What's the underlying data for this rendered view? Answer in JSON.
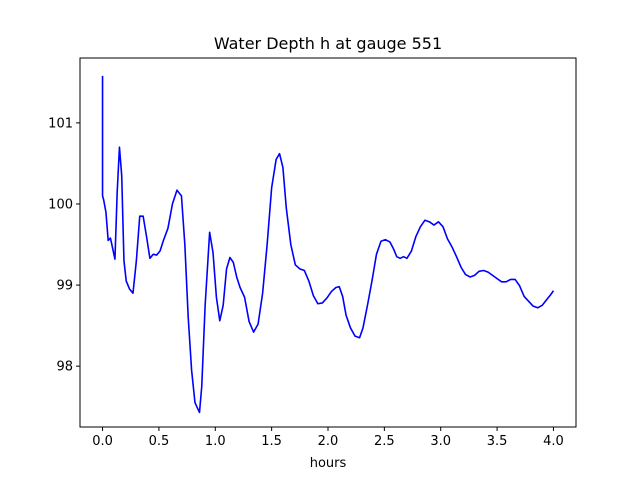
{
  "chart_data": {
    "type": "line",
    "title": "Water Depth h at gauge 551",
    "xlabel": "hours",
    "ylabel": "",
    "xlim": [
      -0.2,
      4.2
    ],
    "ylim": [
      97.25,
      101.8
    ],
    "xticks": [
      0.0,
      0.5,
      1.0,
      1.5,
      2.0,
      2.5,
      3.0,
      3.5,
      4.0
    ],
    "xtick_labels": [
      "0.0",
      "0.5",
      "1.0",
      "1.5",
      "2.0",
      "2.5",
      "3.0",
      "3.5",
      "4.0"
    ],
    "yticks": [
      98,
      99,
      100,
      101
    ],
    "ytick_labels": [
      "98",
      "99",
      "100",
      "101"
    ],
    "grid": false,
    "series": [
      {
        "color": "#0000ff",
        "x": [
          0.0,
          0.0,
          0.01,
          0.03,
          0.05,
          0.07,
          0.09,
          0.11,
          0.13,
          0.15,
          0.17,
          0.19,
          0.21,
          0.24,
          0.27,
          0.3,
          0.33,
          0.36,
          0.39,
          0.42,
          0.45,
          0.48,
          0.51,
          0.54,
          0.58,
          0.62,
          0.66,
          0.7,
          0.73,
          0.76,
          0.79,
          0.82,
          0.86,
          0.88,
          0.91,
          0.95,
          0.98,
          1.01,
          1.04,
          1.07,
          1.1,
          1.13,
          1.16,
          1.19,
          1.22,
          1.26,
          1.3,
          1.34,
          1.38,
          1.42,
          1.46,
          1.5,
          1.54,
          1.57,
          1.6,
          1.63,
          1.67,
          1.71,
          1.75,
          1.79,
          1.83,
          1.87,
          1.91,
          1.95,
          1.99,
          2.03,
          2.07,
          2.1,
          2.13,
          2.16,
          2.2,
          2.24,
          2.28,
          2.31,
          2.35,
          2.39,
          2.43,
          2.47,
          2.51,
          2.55,
          2.58,
          2.61,
          2.64,
          2.67,
          2.7,
          2.74,
          2.78,
          2.82,
          2.86,
          2.9,
          2.94,
          2.98,
          3.02,
          3.06,
          3.1,
          3.14,
          3.18,
          3.22,
          3.26,
          3.3,
          3.34,
          3.38,
          3.42,
          3.46,
          3.5,
          3.54,
          3.58,
          3.62,
          3.66,
          3.7,
          3.74,
          3.78,
          3.82,
          3.86,
          3.9,
          3.94,
          3.98,
          4.0
        ],
        "y": [
          101.58,
          100.1,
          100.05,
          99.9,
          99.55,
          99.58,
          99.45,
          99.32,
          100.15,
          100.7,
          100.35,
          99.3,
          99.05,
          98.95,
          98.9,
          99.3,
          99.85,
          99.85,
          99.6,
          99.33,
          99.38,
          99.37,
          99.42,
          99.55,
          99.7,
          100.0,
          100.17,
          100.1,
          99.5,
          98.6,
          97.95,
          97.55,
          97.43,
          97.75,
          98.75,
          99.65,
          99.4,
          98.85,
          98.56,
          98.75,
          99.2,
          99.34,
          99.28,
          99.1,
          98.97,
          98.85,
          98.55,
          98.42,
          98.52,
          98.9,
          99.5,
          100.2,
          100.55,
          100.62,
          100.45,
          99.95,
          99.5,
          99.25,
          99.2,
          99.18,
          99.05,
          98.87,
          98.77,
          98.78,
          98.84,
          98.92,
          98.97,
          98.98,
          98.86,
          98.63,
          98.47,
          98.37,
          98.35,
          98.47,
          98.75,
          99.05,
          99.38,
          99.54,
          99.56,
          99.53,
          99.45,
          99.35,
          99.33,
          99.35,
          99.33,
          99.42,
          99.6,
          99.72,
          99.8,
          99.78,
          99.74,
          99.78,
          99.72,
          99.57,
          99.47,
          99.35,
          99.22,
          99.13,
          99.1,
          99.12,
          99.17,
          99.18,
          99.16,
          99.12,
          99.08,
          99.04,
          99.04,
          99.07,
          99.07,
          98.99,
          98.86,
          98.8,
          98.74,
          98.72,
          98.75,
          98.82,
          98.89,
          98.93
        ]
      }
    ]
  }
}
